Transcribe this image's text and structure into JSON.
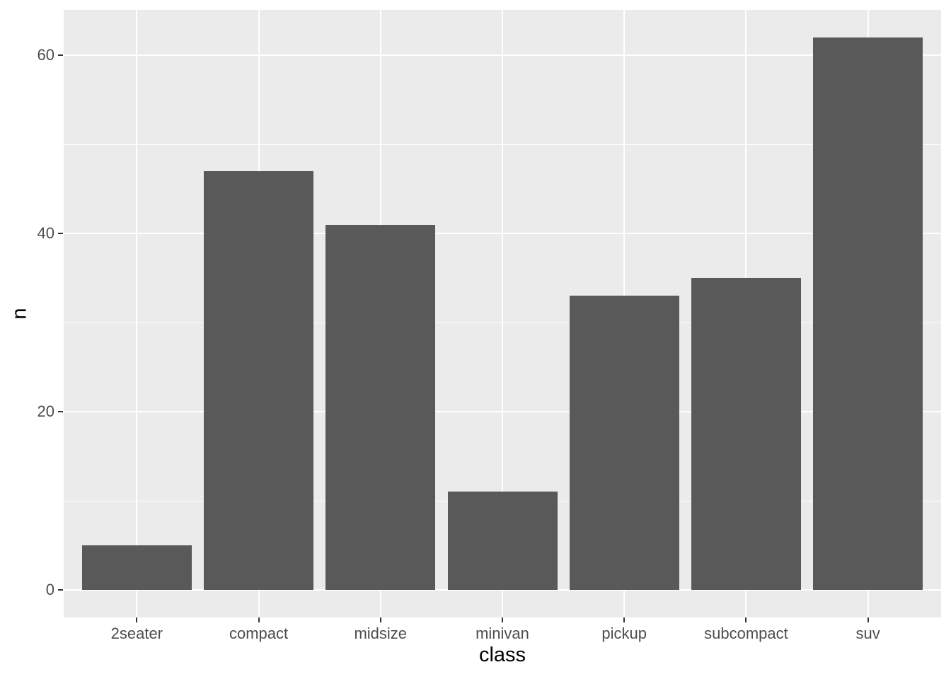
{
  "chart_data": {
    "type": "bar",
    "title": "",
    "xlabel": "class",
    "ylabel": "n",
    "categories": [
      "2seater",
      "compact",
      "midsize",
      "minivan",
      "pickup",
      "subcompact",
      "suv"
    ],
    "values": [
      5,
      47,
      41,
      11,
      33,
      35,
      62
    ],
    "yticks": [
      0,
      20,
      40,
      60
    ],
    "yticks_minor": [
      10,
      30,
      50
    ],
    "ylim": [
      -3.1,
      65.1
    ],
    "bar_rel_width": 0.9,
    "grid": "on",
    "legend": "none",
    "colors": {
      "bar_fill": "#595959",
      "panel_background": "#EBEBEB",
      "grid_major": "#FFFFFF",
      "grid_minor": "#FFFFFF",
      "tick_label_color": "#4D4D4D",
      "tick_mark_color": "#333333",
      "axis_title_color": "#000000",
      "plot_background": "#FFFFFF"
    }
  }
}
